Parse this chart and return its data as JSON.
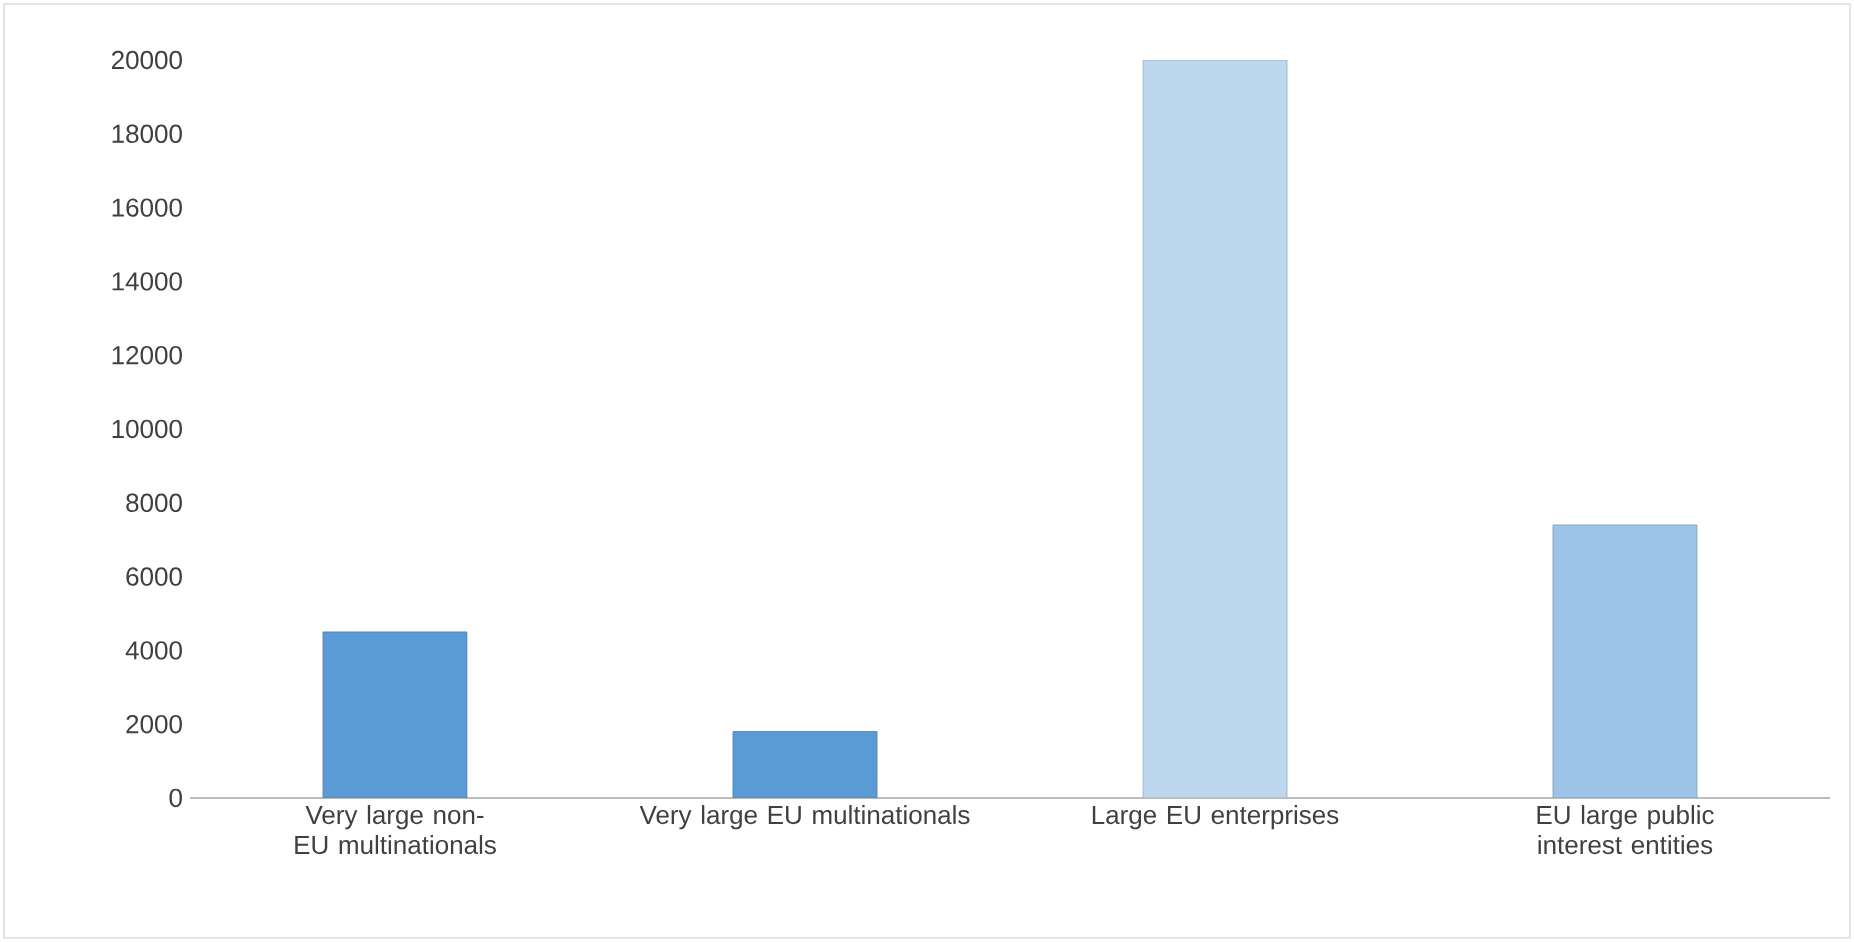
{
  "chart_data": {
    "type": "bar",
    "categories": [
      "Very large non-EU multinationals",
      "Very large EU multinationals",
      "Large EU enterprises",
      "EU large public interest entities"
    ],
    "values": [
      4500,
      1800,
      20000,
      7400
    ],
    "colors": [
      "#5b9bd5",
      "#5b9bd5",
      "#bdd7ee",
      "#9dc3e6"
    ],
    "ylim": [
      0,
      20000
    ],
    "yticks": [
      0,
      2000,
      4000,
      6000,
      8000,
      10000,
      12000,
      14000,
      16000,
      18000,
      20000
    ],
    "grid": false
  }
}
